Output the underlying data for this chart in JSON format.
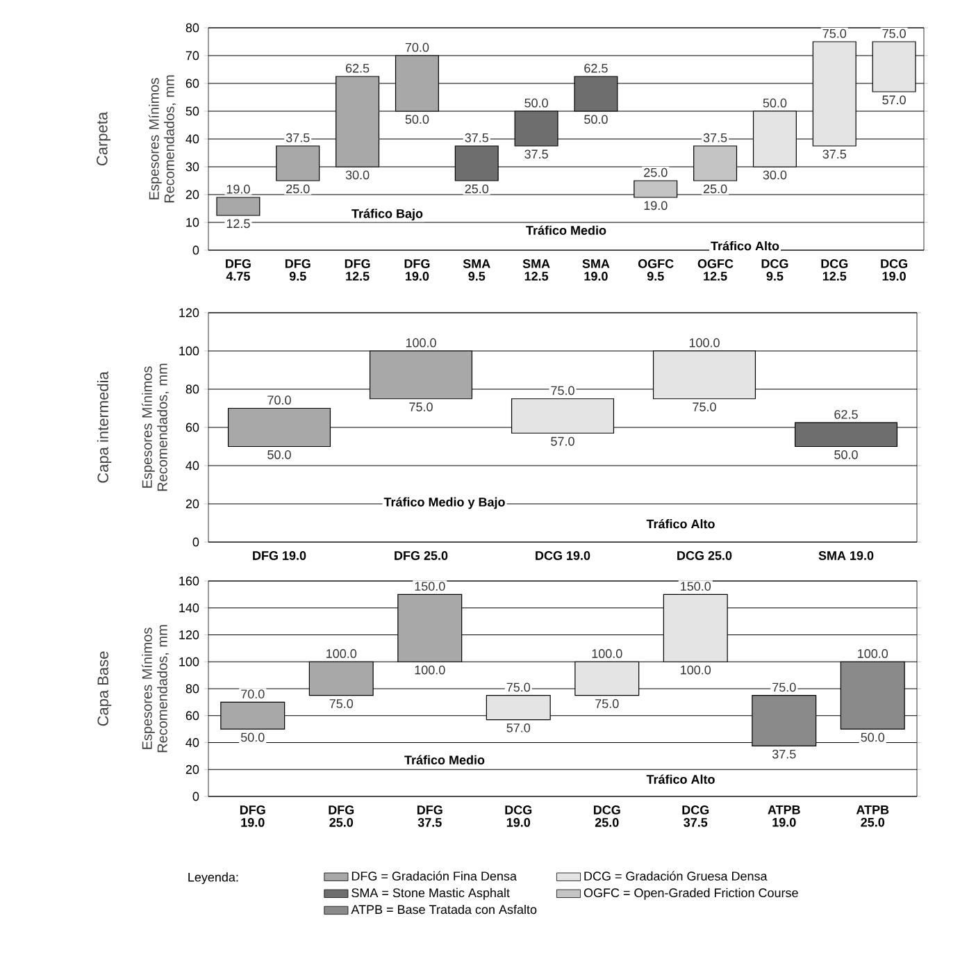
{
  "chart_data": [
    {
      "type": "bar",
      "title": "Carpeta",
      "ylabel": "Espesores Mínimos Recomendados, mm",
      "categories": [
        "DFG 4.75",
        "DFG 9.5",
        "DFG 12.5",
        "DFG 19.0",
        "SMA 9.5",
        "SMA 12.5",
        "SMA 19.0",
        "OGFC 9.5",
        "OGFC 12.5",
        "DCG 9.5",
        "DCG 12.5",
        "DCG 19.0"
      ],
      "series": [
        {
          "color": "#a8a8a8",
          "base": [
            12.5,
            25,
            30,
            50,
            null,
            null,
            null,
            null,
            null,
            null,
            null,
            null
          ],
          "values": [
            6.5,
            12.5,
            32.5,
            20,
            null,
            null,
            null,
            null,
            null,
            null,
            null,
            null
          ]
        },
        {
          "color": "#6e6e6e",
          "base": [
            null,
            null,
            null,
            null,
            25,
            37.5,
            50,
            null,
            null,
            null,
            null,
            null
          ],
          "values": [
            null,
            null,
            null,
            null,
            12.5,
            12.5,
            12.5,
            null,
            null,
            null,
            null,
            null
          ]
        },
        {
          "color": "#c4c4c4",
          "base": [
            null,
            null,
            null,
            null,
            null,
            null,
            null,
            19,
            25,
            null,
            null,
            null
          ],
          "values": [
            null,
            null,
            null,
            null,
            null,
            null,
            null,
            6,
            12.5,
            null,
            null,
            null
          ]
        },
        {
          "color": "#e4e4e4",
          "base": [
            null,
            null,
            null,
            null,
            null,
            null,
            null,
            null,
            null,
            30,
            37.5,
            57
          ],
          "values": [
            null,
            null,
            null,
            null,
            null,
            null,
            null,
            null,
            null,
            20,
            37.5,
            18
          ]
        }
      ],
      "ylim": [
        0,
        80
      ],
      "yticks": [
        0,
        10,
        20,
        30,
        40,
        50,
        60,
        70,
        80
      ],
      "grid": "y",
      "annotations": [
        {
          "text": "19.0",
          "x": "DFG 4.75",
          "y": 19
        },
        {
          "text": "12.5",
          "x": "DFG 4.75",
          "y": 12.5
        },
        {
          "text": "37.5",
          "x": "DFG 9.5",
          "y": 37.5
        },
        {
          "text": "25.0",
          "x": "DFG 9.5",
          "y": 25
        },
        {
          "text": "62.5",
          "x": "DFG 12.5",
          "y": 62.5
        },
        {
          "text": "30.0",
          "x": "DFG 12.5",
          "y": 30
        },
        {
          "text": "70.0",
          "x": "DFG 19.0",
          "y": 70
        },
        {
          "text": "50.0",
          "x": "DFG 19.0",
          "y": 50
        },
        {
          "text": "37.5",
          "x": "SMA 9.5",
          "y": 37.5
        },
        {
          "text": "25.0",
          "x": "SMA 9.5",
          "y": 25
        },
        {
          "text": "50.0",
          "x": "SMA 12.5",
          "y": 50
        },
        {
          "text": "37.5",
          "x": "SMA 12.5",
          "y": 37.5
        },
        {
          "text": "62.5",
          "x": "SMA 19.0",
          "y": 62.5
        },
        {
          "text": "50.0",
          "x": "SMA 19.0",
          "y": 50
        },
        {
          "text": "25.0",
          "x": "OGFC 9.5",
          "y": 25
        },
        {
          "text": "19.0",
          "x": "OGFC 9.5",
          "y": 19
        },
        {
          "text": "37.5",
          "x": "OGFC 12.5",
          "y": 37.5
        },
        {
          "text": "25.0",
          "x": "OGFC 12.5",
          "y": 25
        },
        {
          "text": "50.0",
          "x": "DCG 9.5",
          "y": 50
        },
        {
          "text": "30.0",
          "x": "DCG 9.5",
          "y": 30
        },
        {
          "text": "75.0",
          "x": "DCG 12.5",
          "y": 75
        },
        {
          "text": "37.5",
          "x": "DCG 12.5",
          "y": 37.5
        },
        {
          "text": "75.0",
          "x": "DCG 19.0",
          "y": 75
        },
        {
          "text": "57.0",
          "x": "DCG 19.0",
          "y": 57
        },
        "Tráfico Bajo",
        "Tráfico Medio",
        "Tráfico Alto"
      ]
    },
    {
      "type": "bar",
      "title": "Capa intermedia",
      "ylabel": "Espesores Mínimos Recomendados, mm",
      "categories": [
        "DFG      19.0",
        "DFG      25.0",
        "DCG      19.0",
        "DCG      25.0",
        "SMA      19.0"
      ],
      "series": [
        {
          "color": "#a8a8a8",
          "base": [
            50,
            75,
            null,
            null,
            null
          ],
          "values": [
            20,
            25,
            null,
            null,
            null
          ]
        },
        {
          "color": "#e4e4e4",
          "base": [
            null,
            null,
            57,
            75,
            null
          ],
          "values": [
            null,
            null,
            18,
            25,
            null
          ]
        },
        {
          "color": "#6e6e6e",
          "base": [
            null,
            null,
            null,
            null,
            50
          ],
          "values": [
            null,
            null,
            null,
            null,
            12.5
          ]
        }
      ],
      "ylim": [
        0,
        120
      ],
      "yticks": [
        0,
        20,
        40,
        60,
        80,
        100,
        120
      ],
      "grid": "y",
      "annotations": [
        {
          "text": "70.0",
          "x": "DFG      19.0",
          "y": 70
        },
        {
          "text": "50.0",
          "x": "DFG      19.0",
          "y": 50
        },
        {
          "text": "100.0",
          "x": "DFG      25.0",
          "y": 100
        },
        {
          "text": "75.0",
          "x": "DFG      25.0",
          "y": 75
        },
        {
          "text": "75.0",
          "x": "DCG      19.0",
          "y": 75
        },
        {
          "text": "57.0",
          "x": "DCG      19.0",
          "y": 57
        },
        {
          "text": "100.0",
          "x": "DCG      25.0",
          "y": 100
        },
        {
          "text": "75.0",
          "x": "DCG      25.0",
          "y": 75
        },
        {
          "text": "62.5",
          "x": "SMA      19.0",
          "y": 62.5
        },
        {
          "text": "50.0",
          "x": "SMA      19.0",
          "y": 50
        },
        "Tráfico Medio  y  Bajo",
        "Tráfico Alto"
      ]
    },
    {
      "type": "bar",
      "title": "Capa Base",
      "ylabel": "Espesores Mínimos Recomendados, mm",
      "categories": [
        "DFG 19.0",
        "DFG 25.0",
        "DFG 37.5",
        "DCG 19.0",
        "DCG 25.0",
        "DCG 37.5",
        "ATPB 19.0",
        "ATPB 25.0"
      ],
      "series": [
        {
          "name": "DFG = Gradación Fina Densa",
          "color": "#a8a8a8",
          "base": [
            50,
            75,
            100,
            null,
            null,
            null,
            null,
            null
          ],
          "values": [
            20,
            25,
            50,
            null,
            null,
            null,
            null,
            null
          ]
        },
        {
          "name": "DCG = Gradación Gruesa Densa",
          "color": "#e4e4e4",
          "base": [
            null,
            null,
            null,
            57,
            75,
            100,
            null,
            null
          ],
          "values": [
            null,
            null,
            null,
            18,
            25,
            50,
            null,
            null
          ]
        },
        {
          "name": "SMA = Stone Mastic Asphalt",
          "color": "#6e6e6e",
          "base": [
            null,
            null,
            null,
            null,
            null,
            null,
            null,
            null
          ],
          "values": [
            null,
            null,
            null,
            null,
            null,
            null,
            null,
            null
          ]
        },
        {
          "name": "OGFC = Open-Graded Friction Course",
          "color": "#c4c4c4",
          "base": [
            null,
            null,
            null,
            null,
            null,
            null,
            null,
            null
          ],
          "values": [
            null,
            null,
            null,
            null,
            null,
            null,
            null,
            null
          ]
        },
        {
          "name": "ATPB = Base Tratada con Asfalto",
          "color": "#8a8a8a",
          "base": [
            null,
            null,
            null,
            null,
            null,
            null,
            37.5,
            50
          ],
          "values": [
            null,
            null,
            null,
            null,
            null,
            null,
            37.5,
            50
          ]
        }
      ],
      "ylim": [
        0,
        160
      ],
      "yticks": [
        0,
        20,
        40,
        60,
        80,
        100,
        120,
        140,
        160
      ],
      "grid": "y",
      "legend": "bottom",
      "legend_title": "Leyenda:",
      "annotations": [
        {
          "text": "70.0",
          "x": "DFG 19.0",
          "y": 70
        },
        {
          "text": "50.0",
          "x": "DFG 19.0",
          "y": 50
        },
        {
          "text": "100.0",
          "x": "DFG 25.0",
          "y": 100
        },
        {
          "text": "75.0",
          "x": "DFG 25.0",
          "y": 75
        },
        {
          "text": "150.0",
          "x": "DFG 37.5",
          "y": 150
        },
        {
          "text": "100.0",
          "x": "DFG 37.5",
          "y": 100
        },
        {
          "text": "75.0",
          "x": "DCG 19.0",
          "y": 75
        },
        {
          "text": "57.0",
          "x": "DCG 19.0",
          "y": 57
        },
        {
          "text": "100.0",
          "x": "DCG 25.0",
          "y": 100
        },
        {
          "text": "75.0",
          "x": "DCG 25.0",
          "y": 75
        },
        {
          "text": "150.0",
          "x": "DCG 37.5",
          "y": 150
        },
        {
          "text": "100.0",
          "x": "DCG 37.5",
          "y": 100
        },
        {
          "text": "75.0",
          "x": "ATPB 19.0",
          "y": 75
        },
        {
          "text": "37.5",
          "x": "ATPB 19.0",
          "y": 37.5
        },
        {
          "text": "100.0",
          "x": "ATPB 25.0",
          "y": 100
        },
        {
          "text": "50.0",
          "x": "ATPB 25.0",
          "y": 50
        },
        "Tráfico Medio",
        "Tráfico Alto"
      ]
    }
  ]
}
